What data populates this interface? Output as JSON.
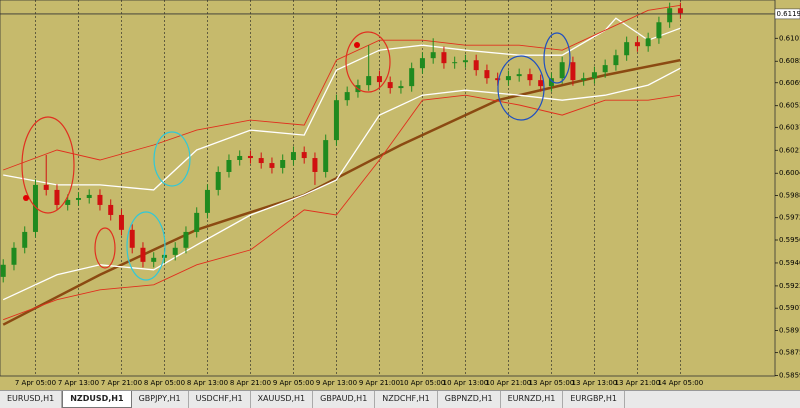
{
  "chart_data": {
    "type": "candlestick",
    "ylim": [
      0.5853,
      0.6129
    ],
    "xlim": [
      -0.3,
      71.8
    ],
    "yticks": [
      0.61015,
      {
        "value": 0.6085,
        "label": "0.60850"
      },
      0.60695,
      {
        "value": 0.6053,
        "label": "0.60530"
      },
      0.60375,
      {
        "value": 0.6021,
        "label": "0.60210"
      },
      0.60045,
      0.59885,
      0.59725,
      0.59565,
      {
        "value": 0.594,
        "label": "0.59400"
      },
      0.59235,
      0.59075,
      0.58915,
      0.58755,
      {
        "value": 0.5859,
        "label": "0.58590"
      }
    ],
    "xticks": [
      {
        "value": 3,
        "label": "7 Apr 05:00"
      },
      {
        "value": 7,
        "label": "7 Apr 13:00"
      },
      {
        "value": 11,
        "label": "7 Apr 21:00"
      },
      {
        "value": 15,
        "label": "8 Apr 05:00"
      },
      {
        "value": 19,
        "label": "8 Apr 13:00"
      },
      {
        "value": 23,
        "label": "8 Apr 21:00"
      },
      {
        "value": 27,
        "label": "9 Apr 05:00"
      },
      {
        "value": 31,
        "label": "9 Apr 13:00"
      },
      {
        "value": 35,
        "label": "9 Apr 21:00"
      },
      {
        "value": 39,
        "label": "10 Apr 05:00"
      },
      {
        "value": 43,
        "label": "10 Apr 13:00"
      },
      {
        "value": 47,
        "label": "10 Apr 21:00"
      },
      {
        "value": 51,
        "label": "13 Apr 05:00"
      },
      {
        "value": 55,
        "label": "13 Apr 13:00"
      },
      {
        "value": 59,
        "label": "13 Apr 21:00"
      },
      {
        "value": 63,
        "label": "14 Apr 05:00"
      }
    ],
    "current_price": {
      "value": 0.6119,
      "label": "0.61190"
    },
    "up_color": "#1f8a1f",
    "down_color": "#d01010",
    "open": [
      0.593,
      0.59387,
      0.59509,
      0.59623,
      0.59961,
      0.59925,
      0.59817,
      0.59853,
      0.59867,
      0.59889,
      0.59817,
      0.59745,
      0.59638,
      0.59509,
      0.59408,
      0.59437,
      0.59458,
      0.59509,
      0.59623,
      0.5976,
      0.59925,
      0.60054,
      0.6014,
      0.60169,
      0.60154,
      0.60118,
      0.60083,
      0.6014,
      0.60197,
      0.60154,
      0.60054,
      0.60283,
      0.6057,
      0.60628,
      0.60678,
      0.60743,
      0.607,
      0.60657,
      0.60671,
      0.608,
      0.60872,
      0.60915,
      0.60836,
      0.60843,
      0.60857,
      0.60786,
      0.60728,
      0.60714,
      0.60743,
      0.60757,
      0.60714,
      0.60671,
      0.60728,
      0.60843,
      0.60714,
      0.60728,
      0.60771,
      0.60822,
      0.60893,
      0.60987,
      0.60958,
      0.61015,
      0.6113,
      0.61231
    ],
    "high": [
      0.59427,
      0.59549,
      0.59663,
      0.60001,
      0.60176,
      0.59965,
      0.59893,
      0.59907,
      0.59929,
      0.59929,
      0.59857,
      0.59785,
      0.59678,
      0.59549,
      0.59477,
      0.59498,
      0.59549,
      0.59663,
      0.598,
      0.59965,
      0.60094,
      0.6018,
      0.60209,
      0.60209,
      0.60194,
      0.60158,
      0.6018,
      0.60237,
      0.60237,
      0.60194,
      0.60323,
      0.6061,
      0.60668,
      0.60718,
      0.60965,
      0.60783,
      0.6074,
      0.60711,
      0.6084,
      0.60912,
      0.61015,
      0.60955,
      0.60883,
      0.60897,
      0.60897,
      0.60826,
      0.60768,
      0.60783,
      0.60797,
      0.60797,
      0.60754,
      0.60768,
      0.60883,
      0.60883,
      0.60768,
      0.60811,
      0.60862,
      0.60933,
      0.61027,
      0.61027,
      0.61055,
      0.6117,
      0.61271,
      0.61271
    ],
    "low": [
      0.5926,
      0.59347,
      0.59469,
      0.59583,
      0.59885,
      0.59777,
      0.59777,
      0.59813,
      0.59827,
      0.59777,
      0.59705,
      0.59598,
      0.59469,
      0.59368,
      0.59368,
      0.59397,
      0.59418,
      0.59469,
      0.59583,
      0.5972,
      0.59885,
      0.60014,
      0.601,
      0.60114,
      0.60078,
      0.60043,
      0.60043,
      0.601,
      0.60114,
      0.59961,
      0.60014,
      0.60243,
      0.6053,
      0.60588,
      0.60638,
      0.6066,
      0.60617,
      0.60617,
      0.60631,
      0.6076,
      0.60832,
      0.60796,
      0.60796,
      0.60803,
      0.60746,
      0.60688,
      0.60674,
      0.60674,
      0.60703,
      0.60674,
      0.60631,
      0.60631,
      0.60688,
      0.60674,
      0.60674,
      0.60688,
      0.60731,
      0.60782,
      0.60853,
      0.60918,
      0.60918,
      0.60975,
      0.6109,
      0.61155
    ],
    "close": [
      0.59387,
      0.59509,
      0.59623,
      0.59961,
      0.59925,
      0.59817,
      0.59853,
      0.59867,
      0.59889,
      0.59817,
      0.59745,
      0.59638,
      0.59509,
      0.59408,
      0.59437,
      0.59458,
      0.59509,
      0.59623,
      0.5976,
      0.59925,
      0.60054,
      0.6014,
      0.60169,
      0.60154,
      0.60118,
      0.60083,
      0.6014,
      0.60197,
      0.60154,
      0.60054,
      0.60283,
      0.6057,
      0.60628,
      0.60678,
      0.60743,
      0.607,
      0.60657,
      0.60671,
      0.608,
      0.60872,
      0.60915,
      0.60836,
      0.60843,
      0.60857,
      0.60786,
      0.60728,
      0.60714,
      0.60743,
      0.60757,
      0.60714,
      0.60671,
      0.60728,
      0.60843,
      0.60714,
      0.60728,
      0.60771,
      0.60822,
      0.60893,
      0.60987,
      0.60958,
      0.61015,
      0.6113,
      0.61231,
      0.61195
    ],
    "lines": [
      {
        "color": "#8b4a12",
        "width": 2.5,
        "x": [
          0,
          9,
          18,
          28,
          37,
          46,
          56,
          63
        ],
        "values": [
          0.58956,
          0.59315,
          0.59638,
          0.59889,
          0.60248,
          0.6057,
          0.6075,
          0.60858
        ]
      },
      {
        "color": "#ffffff",
        "width": 1.3,
        "x": [
          0,
          5,
          9,
          14,
          18,
          23,
          28,
          31,
          35,
          39,
          43,
          48,
          52,
          56,
          57,
          60,
          63
        ],
        "values": [
          0.60032,
          0.59961,
          0.59961,
          0.59925,
          0.60212,
          0.60355,
          0.60319,
          0.60786,
          0.60929,
          0.60965,
          0.60929,
          0.60893,
          0.60893,
          0.61073,
          0.61159,
          0.61001,
          0.61087
        ]
      },
      {
        "color": "#ffffff",
        "width": 1.3,
        "x": [
          0,
          5,
          9,
          14,
          18,
          23,
          28,
          31,
          35,
          39,
          43,
          48,
          52,
          56,
          60,
          63
        ],
        "values": [
          0.59136,
          0.59315,
          0.59387,
          0.59351,
          0.5953,
          0.59745,
          0.59889,
          0.59996,
          0.60463,
          0.60606,
          0.60642,
          0.60606,
          0.6057,
          0.60606,
          0.60678,
          0.608
        ]
      },
      {
        "color": "#e0301e",
        "width": 0.9,
        "x": [
          0,
          5,
          9,
          14,
          18,
          23,
          28,
          31,
          35,
          39,
          43,
          48,
          52,
          56,
          60,
          63
        ],
        "values": [
          0.60068,
          0.60212,
          0.6014,
          0.60248,
          0.60355,
          0.60427,
          0.60391,
          0.60858,
          0.61001,
          0.61001,
          0.60965,
          0.60965,
          0.60929,
          0.61073,
          0.61216,
          0.61252
        ]
      },
      {
        "color": "#e0301e",
        "width": 0.9,
        "x": [
          0,
          5,
          9,
          14,
          18,
          23,
          28,
          31,
          35,
          39,
          43,
          48,
          52,
          56,
          60,
          63
        ],
        "values": [
          0.58992,
          0.59136,
          0.59207,
          0.59243,
          0.59387,
          0.59494,
          0.59781,
          0.59745,
          0.6014,
          0.6057,
          0.60606,
          0.60535,
          0.60463,
          0.6057,
          0.6057,
          0.60606
        ]
      }
    ]
  },
  "tabs": [
    "EURUSD,H1",
    "NZDUSD,H1",
    "GBPJPY,H1",
    "USDCHF,H1",
    "XAUUSD,H1",
    "GBPAUD,H1",
    "NZDCHF,H1",
    "GBPNZD,H1",
    "EURNZD,H1",
    "EURGBP,H1"
  ],
  "active_tab": 1
}
